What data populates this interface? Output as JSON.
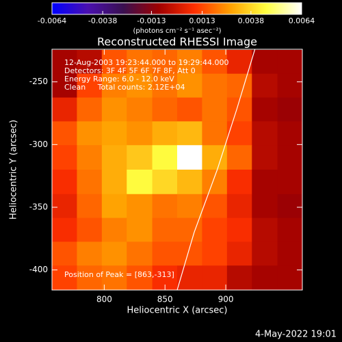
{
  "chart_data": {
    "type": "heatmap",
    "title": "Reconstructed RHESSI Image",
    "x_label": "Heliocentric X (arcsec)",
    "y_label": "Heliocentric Y (arcsec)",
    "colorbar_label": "(photons cm⁻² s⁻¹ asec⁻²)",
    "annotations": [
      "12-Aug-2003 19:23:44.000 to 19:29:44.000",
      "Detectors: 3F 4F 5F 6F 7F 8F, Att 0",
      "Energy Range: 6.0 - 12.0 keV",
      "Clean     Total counts: 2.12E+04"
    ],
    "peak_label": "Position of Peak = [863,-313]",
    "footer": "4-May-2022 19:01",
    "xlim": [
      757,
      963
    ],
    "ylim": [
      -416,
      -224
    ],
    "xticks": [
      800,
      850,
      900
    ],
    "yticks": [
      -250,
      -300,
      -350,
      -400
    ],
    "clim": [
      -0.0064,
      0.0064
    ],
    "cticks": [
      -0.0064,
      -0.0038,
      -0.0013,
      0.0013,
      0.0038,
      0.0064
    ],
    "colormap": [
      "#0000ff",
      "#4a10b0",
      "#3a1050",
      "#a00000",
      "#ff3000",
      "#ffa000",
      "#ffff40",
      "#ffffff"
    ],
    "x": [
      767,
      788,
      808,
      829,
      850,
      870,
      891,
      911,
      932,
      953
    ],
    "y": [
      -234,
      -253,
      -272,
      -291,
      -310,
      -330,
      -349,
      -368,
      -387,
      -406
    ],
    "z": [
      [
        -0.0008,
        -0.0005,
        0.0015,
        0.002,
        0.0018,
        0.0022,
        0.0015,
        0.0005,
        -0.0008,
        -0.0008
      ],
      [
        -0.0008,
        0.0012,
        0.0022,
        0.0025,
        0.002,
        0.0025,
        0.002,
        0.0018,
        -0.0005,
        -0.0008
      ],
      [
        0.0005,
        0.0018,
        0.0025,
        0.0022,
        0.0018,
        0.0015,
        0.002,
        0.0015,
        -0.0008,
        -0.001
      ],
      [
        0.0015,
        0.0025,
        0.0028,
        0.0025,
        0.003,
        0.0032,
        0.002,
        0.0012,
        -0.0005,
        -0.0008
      ],
      [
        0.0012,
        0.0022,
        0.003,
        0.0035,
        0.0045,
        0.0064,
        0.003,
        0.0018,
        -0.0005,
        -0.0008
      ],
      [
        0.0008,
        0.002,
        0.003,
        0.0045,
        0.0038,
        0.0032,
        0.0022,
        0.0008,
        -0.0008,
        -0.0008
      ],
      [
        0.0005,
        0.0018,
        0.0028,
        0.0025,
        0.002,
        0.0022,
        0.0015,
        0.0005,
        -0.0008,
        -0.001
      ],
      [
        0.0008,
        0.0015,
        0.0022,
        0.0025,
        0.0018,
        0.0018,
        0.0012,
        0.0008,
        -0.0005,
        -0.0008
      ],
      [
        0.0015,
        0.0022,
        0.0025,
        0.002,
        0.0015,
        0.0015,
        0.0012,
        0.0005,
        -0.0005,
        -0.0008
      ],
      [
        0.0012,
        0.0018,
        0.002,
        0.0015,
        0.0008,
        0.0005,
        0.0005,
        -0.0005,
        -0.0008,
        -0.0008
      ]
    ],
    "limb": {
      "x": [
        860,
        874,
        893,
        909,
        924
      ],
      "y": [
        -416,
        -370,
        -320,
        -272,
        -224
      ],
      "color": "#ffffff"
    }
  }
}
